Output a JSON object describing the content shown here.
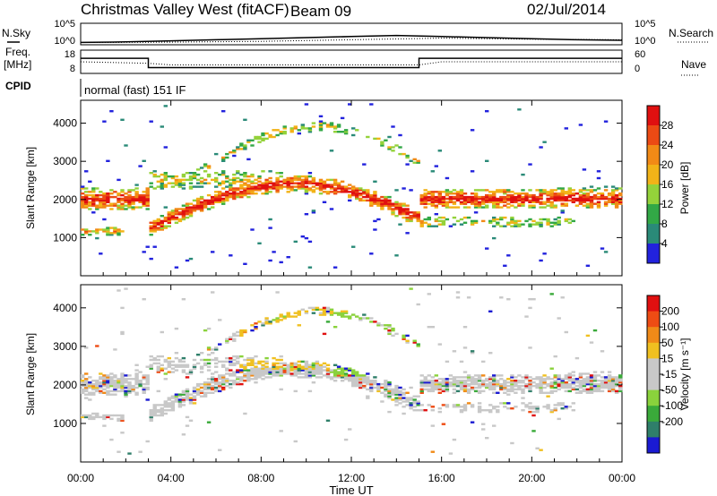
{
  "header": {
    "site": "Christmas Valley West (fitACF)",
    "beam": "Beam 09",
    "date": "02/Jul/2014"
  },
  "side_labels": {
    "nsky": "N.Sky",
    "freq": "Freq.",
    "mhz": "[MHz]",
    "cpid": "CPID",
    "nsearch": "N.Search",
    "nave": "Nave"
  },
  "cpid_text": "normal (fast) 151 IF",
  "colors": {
    "frame": "#000000",
    "background": "#ffffff",
    "power_scale": [
      "#2222dd",
      "#2a8a78",
      "#32a846",
      "#94d23a",
      "#f2b318",
      "#f28a16",
      "#ec4a14",
      "#e01010"
    ],
    "velocity_scale": [
      "#1a1ad2",
      "#2f7f6a",
      "#3aaa3a",
      "#8ad23c",
      "#c8c8c8",
      "#c8c8c8",
      "#f0c020",
      "#f08a18",
      "#ee4c14",
      "#e01010"
    ]
  },
  "chart_data": [
    {
      "type": "line",
      "title": "N.Sky / N.Search",
      "y_left_ticks": [
        "10^5",
        "10^0"
      ],
      "y_right_ticks": [
        "10^5",
        "10^0"
      ],
      "series": [
        {
          "name": "N.Sky",
          "x_hours": [
            0,
            2,
            4,
            6,
            8,
            10,
            12,
            14,
            16,
            18,
            20,
            22,
            24
          ],
          "values": [
            10,
            20,
            40,
            60,
            80,
            100,
            120,
            140,
            120,
            100,
            80,
            60,
            50
          ]
        },
        {
          "name": "N.Search",
          "x_hours": [
            0,
            4,
            8,
            12,
            16,
            20,
            24
          ],
          "values": [
            8,
            15,
            30,
            60,
            90,
            70,
            60
          ]
        }
      ]
    },
    {
      "type": "line",
      "title": "Freq. / Nave",
      "y_left_ticks": [
        "18",
        "8"
      ],
      "y_right_ticks": [
        "60",
        "0"
      ],
      "series": [
        {
          "name": "Freq.",
          "x_hours": [
            0,
            3,
            3,
            15,
            15,
            24
          ],
          "values": [
            14.5,
            14.5,
            10.5,
            10.5,
            14.5,
            14.5
          ]
        },
        {
          "name": "Nave",
          "x_hours": [
            0,
            3,
            4,
            12,
            15,
            16,
            24
          ],
          "values": [
            30,
            26,
            22,
            22,
            22,
            30,
            30
          ]
        }
      ]
    },
    {
      "type": "heatmap",
      "ylabel": "Slant Range [km]",
      "ylim": [
        0,
        4600
      ],
      "y_ticks": [
        1000,
        2000,
        3000,
        4000
      ],
      "colorbar_label": "Power [dB]",
      "colorbar_ticks": [
        4,
        8,
        12,
        16,
        20,
        24,
        28
      ],
      "clim": [
        0,
        32
      ]
    },
    {
      "type": "heatmap",
      "ylabel": "Slant Range [km]",
      "ylim": [
        0,
        4600
      ],
      "y_ticks": [
        1000,
        2000,
        3000,
        4000
      ],
      "colorbar_label": "Velocity [m s⁻¹]",
      "colorbar_ticks": [
        200,
        100,
        50,
        15,
        -15,
        -50,
        -100,
        -200
      ],
      "clim": [
        -250,
        250
      ]
    }
  ],
  "x_axis": {
    "label": "Time UT",
    "ticks": [
      "00:00",
      "04:00",
      "08:00",
      "12:00",
      "16:00",
      "20:00",
      "00:00"
    ],
    "range_hours": [
      0,
      24
    ]
  }
}
